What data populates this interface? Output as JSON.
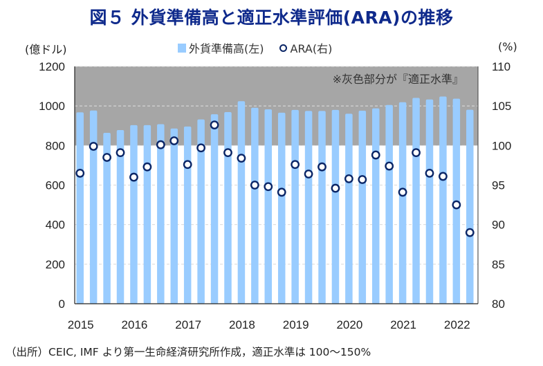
{
  "chart_data": {
    "type": "bar",
    "title": "図５ 外貨準備高と適正水準評価(ARA)の推移",
    "ylabel_left": "(億ドル)",
    "ylabel_right": "(%)",
    "ylim_left": [
      0,
      1200
    ],
    "ylim_right": [
      80,
      110
    ],
    "yticks_left": [
      "0",
      "200",
      "400",
      "600",
      "800",
      "1000",
      "1200"
    ],
    "yticks_right": [
      "80",
      "85",
      "90",
      "95",
      "100",
      "105",
      "110"
    ],
    "xtick_labels": [
      "2015",
      "2016",
      "2017",
      "2018",
      "2019",
      "2020",
      "2021",
      "2022"
    ],
    "x": [
      "2015Q1",
      "2015Q2",
      "2015Q3",
      "2015Q4",
      "2016Q1",
      "2016Q2",
      "2016Q3",
      "2016Q4",
      "2017Q1",
      "2017Q2",
      "2017Q3",
      "2017Q4",
      "2018Q1",
      "2018Q2",
      "2018Q3",
      "2018Q4",
      "2019Q1",
      "2019Q2",
      "2019Q3",
      "2019Q4",
      "2020Q1",
      "2020Q2",
      "2020Q3",
      "2020Q4",
      "2021Q1",
      "2021Q2",
      "2021Q3",
      "2021Q4",
      "2022Q1",
      "2022Q2"
    ],
    "series": [
      {
        "name": "外貨準備高(左)",
        "type": "bar",
        "axis": "left",
        "color": "#99ccff",
        "values": [
          968,
          977,
          864,
          878,
          903,
          903,
          908,
          886,
          896,
          932,
          958,
          969,
          1024,
          991,
          983,
          966,
          980,
          975,
          975,
          980,
          961,
          976,
          988,
          1005,
          1019,
          1041,
          1033,
          1048,
          1037,
          981
        ]
      },
      {
        "name": "ARA(右)",
        "type": "scatter",
        "axis": "right",
        "color": "#0a2566",
        "values": [
          96.5,
          99.9,
          98.5,
          99.1,
          96.0,
          97.3,
          100.1,
          100.6,
          97.6,
          99.7,
          102.6,
          99.1,
          98.4,
          95.0,
          94.8,
          94.1,
          97.6,
          96.4,
          97.3,
          94.6,
          95.8,
          95.7,
          98.8,
          97.4,
          94.1,
          99.1,
          96.5,
          96.1,
          92.5,
          89.0
        ]
      }
    ],
    "shaded_band": {
      "from": 100,
      "to": 110,
      "axis": "right",
      "color": "#a6a6a6",
      "label": "※灰色部分が『適正水準』"
    },
    "legend": "top-center",
    "grid": true
  },
  "source_note": "（出所）CEIC, IMF より第一生命経済研究所作成，適正水準は 100～150%"
}
